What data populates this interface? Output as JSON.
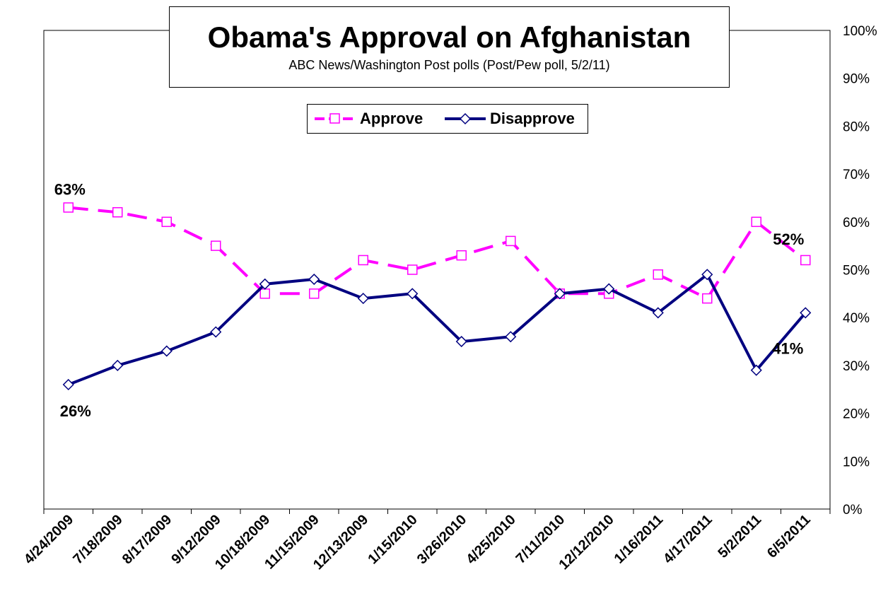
{
  "chart_data": {
    "type": "line",
    "title": "Obama's Approval on Afghanistan",
    "subtitle": "ABC News/Washington Post polls (Post/Pew poll, 5/2/11)",
    "categories": [
      "4/24/2009",
      "7/18/2009",
      "8/17/2009",
      "9/12/2009",
      "10/18/2009",
      "11/15/2009",
      "12/13/2009",
      "1/15/2010",
      "3/26/2010",
      "4/25/2010",
      "7/11/2010",
      "12/12/2010",
      "1/16/2011",
      "4/17/2011",
      "5/2/2011",
      "6/5/2011"
    ],
    "series": [
      {
        "name": "Approve",
        "color": "#ff00ff",
        "dash": "dashed",
        "marker": "square",
        "values": [
          63,
          62,
          60,
          55,
          45,
          45,
          52,
          50,
          53,
          56,
          45,
          45,
          49,
          44,
          60,
          52
        ]
      },
      {
        "name": "Disapprove",
        "color": "#000080",
        "dash": "solid",
        "marker": "diamond",
        "values": [
          26,
          30,
          33,
          37,
          47,
          48,
          44,
          45,
          35,
          36,
          45,
          46,
          41,
          49,
          29,
          41
        ]
      }
    ],
    "annotations": [
      {
        "text": "63%",
        "series": 0,
        "index": 0
      },
      {
        "text": "52%",
        "series": 0,
        "index": 15
      },
      {
        "text": "26%",
        "series": 1,
        "index": 0
      },
      {
        "text": "41%",
        "series": 1,
        "index": 15
      }
    ],
    "yticks": [
      "0%",
      "10%",
      "20%",
      "30%",
      "40%",
      "50%",
      "60%",
      "70%",
      "80%",
      "90%",
      "100%"
    ],
    "ylim": [
      0,
      100
    ],
    "y_axis_side": "right",
    "grid": false,
    "legend": "top-center"
  }
}
